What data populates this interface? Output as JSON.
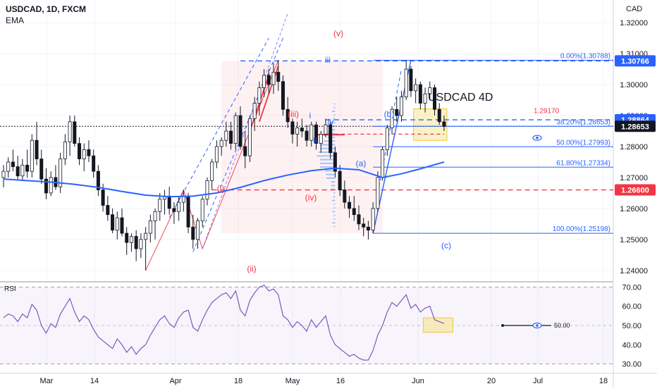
{
  "header": {
    "symbol": "USDCAD, 1D, FXCM",
    "indicator": "EMA"
  },
  "price_axis": {
    "currency": "CAD",
    "ticks": [
      "1.32000",
      "1.31000",
      "1.30000",
      "1.29000",
      "1.28000",
      "1.27000",
      "1.26000",
      "1.25000",
      "1.24000"
    ]
  },
  "rsi_panel": {
    "title": "RSI",
    "ticks": [
      "70.00",
      "60.00",
      "50.00",
      "40.00",
      "30.00"
    ],
    "level_label": "50.00"
  },
  "time_axis": {
    "labels": [
      "Mar",
      "14",
      "Apr",
      "18",
      "May",
      "16",
      "Jun",
      "20",
      "Jul",
      "18"
    ]
  },
  "annotations": {
    "watermark": "USDCAD 4D",
    "waves": [
      "(i)",
      "(ii)",
      "(iii)",
      "(iv)",
      "(v)",
      "i",
      "ii",
      "iii",
      "iv",
      "(a)",
      "(b)",
      "(c)"
    ],
    "fib": [
      {
        "label": "0.00%(1.30788)",
        "price": 1.30788
      },
      {
        "label": "38.20%(1.28653)",
        "price": 1.28653
      },
      {
        "label": "50.00%(1.27993)",
        "price": 1.27993
      },
      {
        "label": "61.80%(1.27334)",
        "price": 1.27334
      },
      {
        "label": "100.00%(1.25198)",
        "price": 1.25198
      }
    ],
    "resistance_note": "1.29170"
  },
  "price_badges": [
    {
      "label": "1.30766",
      "price": 1.30766,
      "bg": "#2962ff",
      "fg": "#ffffff"
    },
    {
      "label": "1.28864",
      "price": 1.28864,
      "bg": "#2962ff",
      "fg": "#ffffff"
    },
    {
      "label": "1.28653",
      "price": 1.28653,
      "bg": "#131722",
      "fg": "#ffffff"
    },
    {
      "label": "1.26600",
      "price": 1.266,
      "bg": "#f23645",
      "fg": "#ffffff"
    }
  ],
  "colors": {
    "up": "#131722",
    "down": "#131722",
    "ema": "#2962ff",
    "rsi": "#7e57c2",
    "fib": "#2962ff",
    "red": "#f23645",
    "highlight": "#f7e7a1"
  },
  "chart_data": {
    "type": "candlestick",
    "title": "USDCAD, 1D, FXCM",
    "ylim": [
      1.237,
      1.3255
    ],
    "series": [
      {
        "name": "USDCAD",
        "type": "ohlc",
        "values": [
          [
            1.27,
            1.274,
            1.2668,
            1.272
          ],
          [
            1.272,
            1.2765,
            1.27,
            1.275
          ],
          [
            1.275,
            1.279,
            1.272,
            1.2735
          ],
          [
            1.2735,
            1.277,
            1.269,
            1.2705
          ],
          [
            1.2705,
            1.276,
            1.269,
            1.274
          ],
          [
            1.274,
            1.279,
            1.27,
            1.272
          ],
          [
            1.272,
            1.284,
            1.27,
            1.282
          ],
          [
            1.282,
            1.288,
            1.274,
            1.276
          ],
          [
            1.276,
            1.279,
            1.268,
            1.2695
          ],
          [
            1.2695,
            1.273,
            1.263,
            1.265
          ],
          [
            1.265,
            1.272,
            1.264,
            1.27
          ],
          [
            1.27,
            1.274,
            1.266,
            1.267
          ],
          [
            1.267,
            1.278,
            1.265,
            1.276
          ],
          [
            1.276,
            1.284,
            1.274,
            1.2815
          ],
          [
            1.2815,
            1.29,
            1.277,
            1.288
          ],
          [
            1.288,
            1.29,
            1.28,
            1.281
          ],
          [
            1.281,
            1.283,
            1.274,
            1.276
          ],
          [
            1.276,
            1.281,
            1.272,
            1.279
          ],
          [
            1.279,
            1.282,
            1.275,
            1.277
          ],
          [
            1.277,
            1.279,
            1.27,
            1.272
          ],
          [
            1.272,
            1.274,
            1.264,
            1.266
          ],
          [
            1.266,
            1.268,
            1.259,
            1.261
          ],
          [
            1.261,
            1.264,
            1.256,
            1.258
          ],
          [
            1.258,
            1.26,
            1.252,
            1.253
          ],
          [
            1.253,
            1.259,
            1.25,
            1.257
          ],
          [
            1.257,
            1.26,
            1.251,
            1.252
          ],
          [
            1.252,
            1.254,
            1.245,
            1.249
          ],
          [
            1.249,
            1.252,
            1.246,
            1.251
          ],
          [
            1.251,
            1.253,
            1.243,
            1.247
          ],
          [
            1.247,
            1.252,
            1.244,
            1.25
          ],
          [
            1.25,
            1.254,
            1.24,
            1.252
          ],
          [
            1.252,
            1.258,
            1.249,
            1.256
          ],
          [
            1.256,
            1.26,
            1.25,
            1.259
          ],
          [
            1.259,
            1.265,
            1.256,
            1.263
          ],
          [
            1.263,
            1.266,
            1.258,
            1.264
          ],
          [
            1.264,
            1.267,
            1.258,
            1.26
          ],
          [
            1.26,
            1.262,
            1.255,
            1.259
          ],
          [
            1.259,
            1.264,
            1.256,
            1.262
          ],
          [
            1.262,
            1.266,
            1.259,
            1.264
          ],
          [
            1.264,
            1.265,
            1.252,
            1.254
          ],
          [
            1.254,
            1.258,
            1.247,
            1.25
          ],
          [
            1.25,
            1.257,
            1.247,
            1.256
          ],
          [
            1.256,
            1.264,
            1.254,
            1.263
          ],
          [
            1.263,
            1.27,
            1.261,
            1.269
          ],
          [
            1.269,
            1.276,
            1.266,
            1.275
          ],
          [
            1.275,
            1.282,
            1.273,
            1.28
          ],
          [
            1.28,
            1.283,
            1.277,
            1.282
          ],
          [
            1.282,
            1.288,
            1.28,
            1.285
          ],
          [
            1.285,
            1.288,
            1.279,
            1.281
          ],
          [
            1.281,
            1.291,
            1.279,
            1.29
          ],
          [
            1.29,
            1.293,
            1.279,
            1.28
          ],
          [
            1.28,
            1.285,
            1.273,
            1.277
          ],
          [
            1.277,
            1.29,
            1.275,
            1.289
          ],
          [
            1.289,
            1.296,
            1.285,
            1.294
          ],
          [
            1.294,
            1.301,
            1.29,
            1.299
          ],
          [
            1.299,
            1.305,
            1.296,
            1.303
          ],
          [
            1.303,
            1.305,
            1.297,
            1.3
          ],
          [
            1.3,
            1.307,
            1.297,
            1.304
          ],
          [
            1.304,
            1.3079,
            1.298,
            1.301
          ],
          [
            1.301,
            1.303,
            1.29,
            1.292
          ],
          [
            1.292,
            1.296,
            1.286,
            1.288
          ],
          [
            1.288,
            1.289,
            1.281,
            1.284
          ],
          [
            1.284,
            1.288,
            1.28,
            1.286
          ],
          [
            1.286,
            1.289,
            1.283,
            1.285
          ],
          [
            1.285,
            1.287,
            1.28,
            1.282
          ],
          [
            1.282,
            1.288,
            1.28,
            1.287
          ],
          [
            1.287,
            1.288,
            1.279,
            1.281
          ],
          [
            1.281,
            1.285,
            1.278,
            1.284
          ],
          [
            1.284,
            1.289,
            1.283,
            1.287
          ],
          [
            1.287,
            1.288,
            1.276,
            1.278
          ],
          [
            1.278,
            1.28,
            1.27,
            1.272
          ],
          [
            1.272,
            1.274,
            1.264,
            1.266
          ],
          [
            1.266,
            1.269,
            1.26,
            1.262
          ],
          [
            1.262,
            1.264,
            1.257,
            1.26
          ],
          [
            1.26,
            1.264,
            1.256,
            1.258
          ],
          [
            1.258,
            1.261,
            1.253,
            1.255
          ],
          [
            1.255,
            1.257,
            1.251,
            1.254
          ],
          [
            1.254,
            1.256,
            1.25,
            1.253
          ],
          [
            1.253,
            1.262,
            1.252,
            1.26
          ],
          [
            1.26,
            1.272,
            1.259,
            1.27
          ],
          [
            1.27,
            1.28,
            1.269,
            1.279
          ],
          [
            1.279,
            1.287,
            1.277,
            1.286
          ],
          [
            1.286,
            1.293,
            1.284,
            1.292
          ],
          [
            1.292,
            1.296,
            1.288,
            1.29
          ],
          [
            1.29,
            1.298,
            1.288,
            1.296
          ],
          [
            1.296,
            1.3079,
            1.295,
            1.305
          ],
          [
            1.305,
            1.306,
            1.296,
            1.298
          ],
          [
            1.298,
            1.302,
            1.294,
            1.3
          ],
          [
            1.3,
            1.301,
            1.292,
            1.294
          ],
          [
            1.294,
            1.299,
            1.291,
            1.297
          ],
          [
            1.297,
            1.301,
            1.295,
            1.299
          ],
          [
            1.299,
            1.3,
            1.29,
            1.292
          ],
          [
            1.292,
            1.294,
            1.287,
            1.288
          ],
          [
            1.288,
            1.29,
            1.285,
            1.2865
          ]
        ]
      },
      {
        "name": "EMA",
        "type": "line",
        "values": [
          [
            0,
            1.2695
          ],
          [
            5,
            1.269
          ],
          [
            10,
            1.2685
          ],
          [
            15,
            1.2678
          ],
          [
            20,
            1.2668
          ],
          [
            25,
            1.2655
          ],
          [
            30,
            1.2643
          ],
          [
            35,
            1.2638
          ],
          [
            40,
            1.264
          ],
          [
            45,
            1.265
          ],
          [
            50,
            1.2668
          ],
          [
            55,
            1.269
          ],
          [
            60,
            1.2708
          ],
          [
            65,
            1.2722
          ],
          [
            70,
            1.273
          ],
          [
            75,
            1.2725
          ],
          [
            78,
            1.271
          ],
          [
            80,
            1.27
          ],
          [
            84,
            1.2712
          ],
          [
            88,
            1.2728
          ],
          [
            93,
            1.275
          ]
        ]
      },
      {
        "name": "RSI",
        "type": "line",
        "values": [
          54,
          56,
          55,
          52,
          56,
          54,
          61,
          58,
          50,
          46,
          51,
          49,
          56,
          60,
          64,
          57,
          52,
          55,
          53,
          48,
          44,
          42,
          40,
          38,
          43,
          40,
          36,
          39,
          35,
          38,
          40,
          45,
          49,
          53,
          55,
          51,
          49,
          54,
          57,
          58,
          49,
          47,
          53,
          58,
          62,
          64,
          66,
          67,
          64,
          68,
          58,
          55,
          63,
          67,
          70,
          71,
          68,
          69,
          66,
          55,
          53,
          49,
          52,
          50,
          47,
          53,
          49,
          52,
          55,
          45,
          40,
          38,
          36,
          34,
          35,
          33,
          32,
          32,
          37,
          45,
          50,
          57,
          62,
          60,
          63,
          66,
          59,
          61,
          57,
          59,
          60,
          53,
          52,
          51
        ]
      }
    ]
  }
}
